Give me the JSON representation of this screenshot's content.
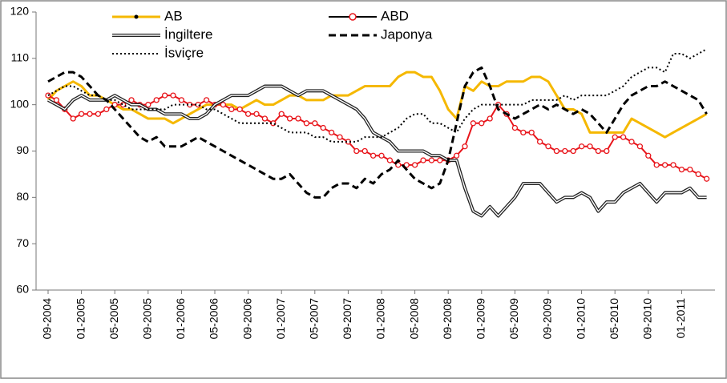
{
  "chart_data": {
    "type": "line",
    "categories": [
      "09-2004",
      null,
      null,
      null,
      "01-2005",
      null,
      null,
      null,
      "05-2005",
      null,
      null,
      null,
      "09-2005",
      null,
      null,
      null,
      "01-2006",
      null,
      null,
      null,
      "05-2006",
      null,
      null,
      null,
      "09-2006",
      null,
      null,
      null,
      "01-2007",
      null,
      null,
      null,
      "05-2007",
      null,
      null,
      null,
      "09-2007",
      null,
      null,
      null,
      "01-2008",
      null,
      null,
      null,
      "05-2008",
      null,
      null,
      null,
      "09-2008",
      null,
      null,
      null,
      "01-2009",
      null,
      null,
      null,
      "05-2009",
      null,
      null,
      null,
      "09-2009",
      null,
      null,
      null,
      "01-2010",
      null,
      null,
      null,
      "05-2010",
      null,
      null,
      null,
      "09-2010",
      null,
      null,
      null,
      "01-2011",
      null,
      null,
      null
    ],
    "ylim": [
      60,
      120
    ],
    "yticks": [
      60,
      70,
      80,
      90,
      100,
      110,
      120
    ],
    "grid": false,
    "series": [
      {
        "name": "AB",
        "color": "#f5b800",
        "style": "solid",
        "marker": "dot",
        "values": [
          101,
          103,
          104,
          105,
          104,
          102,
          102,
          101,
          100,
          99,
          99,
          98,
          97,
          97,
          97,
          96,
          97,
          98,
          99,
          100,
          100,
          100,
          100,
          99,
          100,
          101,
          100,
          100,
          101,
          102,
          102,
          101,
          101,
          101,
          102,
          102,
          102,
          103,
          104,
          104,
          104,
          104,
          106,
          107,
          107,
          106,
          106,
          103,
          99,
          97,
          104,
          103,
          105,
          104,
          104,
          105,
          105,
          105,
          106,
          106,
          105,
          102,
          99,
          99,
          98,
          94,
          94,
          94,
          94,
          94,
          97,
          96,
          95,
          94,
          93,
          94,
          95,
          96,
          97,
          98
        ]
      },
      {
        "name": "ABD",
        "color": "#e8141a",
        "style": "solid",
        "marker": "circle",
        "values": [
          102,
          101,
          99,
          97,
          98,
          98,
          98,
          99,
          100,
          100,
          101,
          100,
          100,
          101,
          102,
          102,
          101,
          100,
          100,
          101,
          100,
          100,
          99,
          99,
          98,
          98,
          97,
          96,
          98,
          97,
          97,
          96,
          96,
          95,
          94,
          93,
          92,
          90,
          90,
          89,
          89,
          88,
          87,
          87,
          87,
          88,
          88,
          88,
          88,
          89,
          91,
          96,
          96,
          97,
          100,
          98,
          95,
          94,
          94,
          92,
          91,
          90,
          90,
          90,
          91,
          91,
          90,
          90,
          93,
          93,
          92,
          91,
          89,
          87,
          87,
          87,
          86,
          86,
          85,
          84
        ]
      },
      {
        "name": "İngiltere",
        "color": "#222222",
        "style": "double",
        "values": [
          101,
          100,
          99,
          101,
          102,
          101,
          101,
          101,
          102,
          101,
          100,
          100,
          99,
          99,
          98,
          98,
          98,
          97,
          97,
          98,
          100,
          101,
          102,
          102,
          102,
          103,
          104,
          104,
          104,
          103,
          102,
          103,
          103,
          103,
          102,
          101,
          100,
          99,
          97,
          94,
          93,
          92,
          90,
          90,
          90,
          90,
          89,
          89,
          88,
          88,
          82,
          77,
          76,
          78,
          76,
          78,
          80,
          83,
          83,
          83,
          81,
          79,
          80,
          80,
          81,
          80,
          77,
          79,
          79,
          81,
          82,
          83,
          81,
          79,
          81,
          81,
          81,
          82,
          80,
          80
        ]
      },
      {
        "name": "Japonya",
        "color": "#000000",
        "style": "dashed",
        "values": [
          105,
          106,
          107,
          107,
          106,
          104,
          102,
          101,
          99,
          97,
          95,
          93,
          92,
          93,
          91,
          91,
          91,
          92,
          93,
          92,
          91,
          90,
          89,
          88,
          87,
          86,
          85,
          84,
          84,
          85,
          83,
          81,
          80,
          80,
          82,
          83,
          83,
          82,
          84,
          83,
          85,
          86,
          88,
          86,
          84,
          83,
          82,
          83,
          88,
          96,
          104,
          107,
          108,
          104,
          99,
          98,
          97,
          98,
          99,
          100,
          99,
          100,
          99,
          98,
          99,
          98,
          96,
          94,
          97,
          100,
          102,
          103,
          104,
          104,
          105,
          104,
          103,
          102,
          101,
          98
        ]
      },
      {
        "name": "İsviçre",
        "color": "#000000",
        "style": "dotted",
        "values": [
          102,
          103,
          104,
          104,
          103,
          102,
          102,
          101,
          101,
          100,
          99,
          99,
          99,
          99,
          99,
          100,
          100,
          100,
          100,
          99,
          99,
          98,
          97,
          96,
          96,
          96,
          96,
          96,
          95,
          94,
          94,
          94,
          93,
          93,
          92,
          92,
          92,
          92,
          93,
          93,
          93,
          94,
          95,
          97,
          98,
          98,
          96,
          96,
          95,
          94,
          97,
          99,
          100,
          100,
          100,
          100,
          100,
          100,
          101,
          101,
          101,
          101,
          102,
          101,
          102,
          102,
          102,
          102,
          103,
          104,
          106,
          107,
          108,
          108,
          107,
          111,
          111,
          110,
          111,
          112
        ]
      }
    ]
  }
}
